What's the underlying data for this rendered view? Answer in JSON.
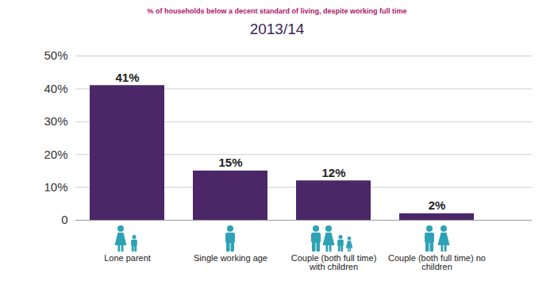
{
  "chart_data": {
    "type": "bar",
    "title": "% of households below a decent standard of living, despite working full time",
    "subtitle": "2013/14",
    "categories": [
      "Lone parent",
      "Single working age",
      "Couple (both full time) with children",
      "Couple (both full time) no children"
    ],
    "values": [
      41,
      15,
      12,
      2
    ],
    "value_labels": [
      "41%",
      "15%",
      "12%",
      "2%"
    ],
    "data_labels": true,
    "color": "#4b2768",
    "ylim": [
      0,
      50
    ],
    "yticks": [
      0,
      {
        "value": 10,
        "label": "10%"
      },
      {
        "value": 20,
        "label": "20%"
      },
      {
        "value": 30,
        "label": "30%"
      },
      {
        "value": 40,
        "label": "40%"
      },
      {
        "value": 50,
        "label": "50%"
      }
    ],
    "grid": true
  }
}
